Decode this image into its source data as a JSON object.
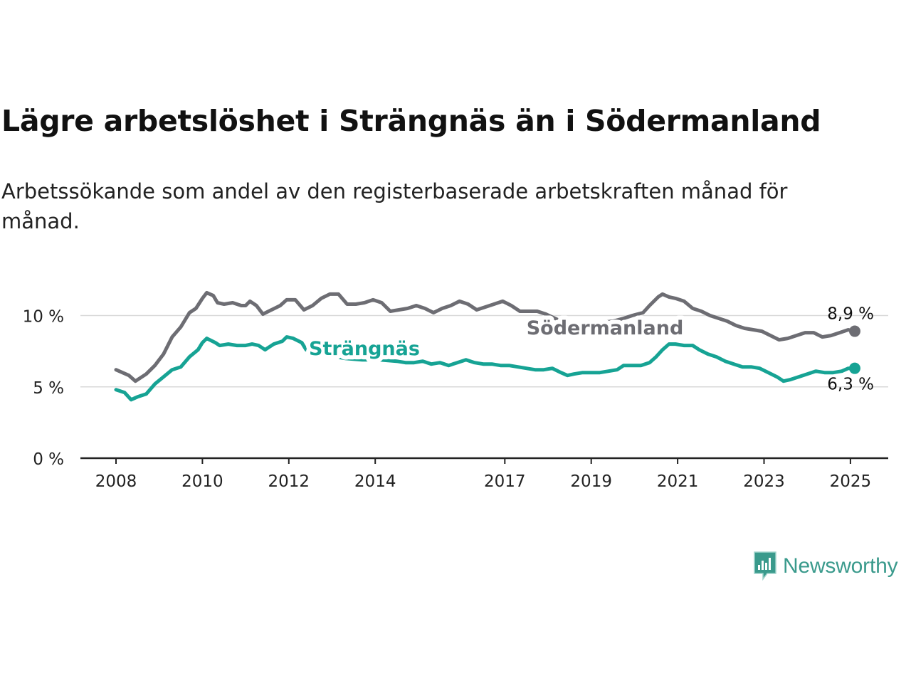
{
  "title": "Lägre arbetslöshet i Strängnäs än i Södermanland",
  "subtitle": "Arbetssökande som andel av den registerbaserade arbetskraften månad för månad.",
  "logo_text": "Newsworthy",
  "colors": {
    "sodermanland": "#6d6d73",
    "strangnas": "#16a394",
    "grid": "#d9d9d9",
    "axis": "#222222"
  },
  "chart_data": {
    "type": "line",
    "y_ticks": [
      {
        "value": 0,
        "label": "0 %"
      },
      {
        "value": 5,
        "label": "5 %"
      },
      {
        "value": 10,
        "label": "10 %"
      }
    ],
    "x_ticks": [
      {
        "value": 2008,
        "label": "2008"
      },
      {
        "value": 2010,
        "label": "2010"
      },
      {
        "value": 2012,
        "label": "2012"
      },
      {
        "value": 2014,
        "label": "2014"
      },
      {
        "value": 2017,
        "label": "2017"
      },
      {
        "value": 2019,
        "label": "2019"
      },
      {
        "value": 2021,
        "label": "2021"
      },
      {
        "value": 2023,
        "label": "2023"
      },
      {
        "value": 2025,
        "label": "2025"
      }
    ],
    "ylim": [
      0,
      12
    ],
    "xlim": [
      2007.25,
      2026
    ],
    "grid": true,
    "series": [
      {
        "name": "Södermanland",
        "color": "#6d6d73",
        "end_label": "8,9 %",
        "points": [
          [
            2008.0,
            6.2
          ],
          [
            2008.3,
            5.8
          ],
          [
            2008.45,
            5.4
          ],
          [
            2008.7,
            5.9
          ],
          [
            2008.9,
            6.5
          ],
          [
            2009.1,
            7.3
          ],
          [
            2009.3,
            8.5
          ],
          [
            2009.5,
            9.2
          ],
          [
            2009.7,
            10.2
          ],
          [
            2009.85,
            10.5
          ],
          [
            2010.0,
            11.2
          ],
          [
            2010.1,
            11.6
          ],
          [
            2010.25,
            11.4
          ],
          [
            2010.35,
            10.9
          ],
          [
            2010.5,
            10.8
          ],
          [
            2010.7,
            10.9
          ],
          [
            2010.9,
            10.7
          ],
          [
            2011.0,
            10.7
          ],
          [
            2011.1,
            11.0
          ],
          [
            2011.25,
            10.7
          ],
          [
            2011.4,
            10.1
          ],
          [
            2011.6,
            10.4
          ],
          [
            2011.8,
            10.7
          ],
          [
            2011.95,
            11.1
          ],
          [
            2012.15,
            11.1
          ],
          [
            2012.35,
            10.4
          ],
          [
            2012.55,
            10.7
          ],
          [
            2012.75,
            11.2
          ],
          [
            2012.95,
            11.5
          ],
          [
            2013.15,
            11.5
          ],
          [
            2013.35,
            10.8
          ],
          [
            2013.55,
            10.8
          ],
          [
            2013.75,
            10.9
          ],
          [
            2013.95,
            11.1
          ],
          [
            2014.15,
            10.9
          ],
          [
            2014.35,
            10.3
          ],
          [
            2014.55,
            10.4
          ],
          [
            2014.75,
            10.5
          ],
          [
            2014.95,
            10.7
          ],
          [
            2015.15,
            10.5
          ],
          [
            2015.35,
            10.2
          ],
          [
            2015.55,
            10.5
          ],
          [
            2015.75,
            10.7
          ],
          [
            2015.95,
            11.0
          ],
          [
            2016.15,
            10.8
          ],
          [
            2016.35,
            10.4
          ],
          [
            2016.55,
            10.6
          ],
          [
            2016.75,
            10.8
          ],
          [
            2016.95,
            11.0
          ],
          [
            2017.15,
            10.7
          ],
          [
            2017.35,
            10.3
          ],
          [
            2017.55,
            10.3
          ],
          [
            2017.75,
            10.3
          ],
          [
            2017.95,
            10.1
          ],
          [
            2018.3,
            9.6
          ],
          [
            2018.6,
            9.4
          ],
          [
            2018.9,
            9.4
          ],
          [
            2019.2,
            9.5
          ],
          [
            2019.5,
            9.6
          ],
          [
            2019.75,
            9.8
          ],
          [
            2019.95,
            10.0
          ],
          [
            2020.2,
            10.2
          ],
          [
            2020.35,
            10.7
          ],
          [
            2020.55,
            11.3
          ],
          [
            2020.65,
            11.5
          ],
          [
            2020.8,
            11.3
          ],
          [
            2020.95,
            11.2
          ],
          [
            2021.15,
            11.0
          ],
          [
            2021.35,
            10.5
          ],
          [
            2021.55,
            10.3
          ],
          [
            2021.75,
            10.0
          ],
          [
            2021.95,
            9.8
          ],
          [
            2022.15,
            9.6
          ],
          [
            2022.35,
            9.3
          ],
          [
            2022.55,
            9.1
          ],
          [
            2022.75,
            9.0
          ],
          [
            2022.95,
            8.9
          ],
          [
            2023.15,
            8.6
          ],
          [
            2023.35,
            8.3
          ],
          [
            2023.55,
            8.4
          ],
          [
            2023.75,
            8.6
          ],
          [
            2023.95,
            8.8
          ],
          [
            2024.15,
            8.8
          ],
          [
            2024.35,
            8.5
          ],
          [
            2024.55,
            8.6
          ],
          [
            2024.75,
            8.8
          ],
          [
            2024.95,
            9.0
          ],
          [
            2025.1,
            8.9
          ]
        ]
      },
      {
        "name": "Strängnäs",
        "color": "#16a394",
        "end_label": "6,3 %",
        "points": [
          [
            2008.0,
            4.8
          ],
          [
            2008.2,
            4.6
          ],
          [
            2008.35,
            4.1
          ],
          [
            2008.5,
            4.3
          ],
          [
            2008.7,
            4.5
          ],
          [
            2008.9,
            5.2
          ],
          [
            2009.1,
            5.7
          ],
          [
            2009.3,
            6.2
          ],
          [
            2009.5,
            6.4
          ],
          [
            2009.7,
            7.1
          ],
          [
            2009.9,
            7.6
          ],
          [
            2010.0,
            8.1
          ],
          [
            2010.1,
            8.4
          ],
          [
            2010.3,
            8.1
          ],
          [
            2010.4,
            7.9
          ],
          [
            2010.6,
            8.0
          ],
          [
            2010.8,
            7.9
          ],
          [
            2011.0,
            7.9
          ],
          [
            2011.15,
            8.0
          ],
          [
            2011.3,
            7.9
          ],
          [
            2011.45,
            7.6
          ],
          [
            2011.65,
            8.0
          ],
          [
            2011.85,
            8.2
          ],
          [
            2011.95,
            8.5
          ],
          [
            2012.1,
            8.4
          ],
          [
            2012.3,
            8.1
          ],
          [
            2012.4,
            7.6
          ],
          [
            2012.6,
            7.4
          ],
          [
            2012.9,
            7.2
          ],
          [
            2013.3,
            7.0
          ],
          [
            2013.7,
            6.9
          ],
          [
            2014.1,
            6.9
          ],
          [
            2014.5,
            6.8
          ],
          [
            2014.7,
            6.7
          ],
          [
            2014.9,
            6.7
          ],
          [
            2015.1,
            6.8
          ],
          [
            2015.3,
            6.6
          ],
          [
            2015.5,
            6.7
          ],
          [
            2015.7,
            6.5
          ],
          [
            2015.9,
            6.7
          ],
          [
            2016.1,
            6.9
          ],
          [
            2016.3,
            6.7
          ],
          [
            2016.5,
            6.6
          ],
          [
            2016.7,
            6.6
          ],
          [
            2016.9,
            6.5
          ],
          [
            2017.1,
            6.5
          ],
          [
            2017.3,
            6.4
          ],
          [
            2017.5,
            6.3
          ],
          [
            2017.7,
            6.2
          ],
          [
            2017.9,
            6.2
          ],
          [
            2018.1,
            6.3
          ],
          [
            2018.3,
            6.0
          ],
          [
            2018.45,
            5.8
          ],
          [
            2018.6,
            5.9
          ],
          [
            2018.8,
            6.0
          ],
          [
            2019.0,
            6.0
          ],
          [
            2019.2,
            6.0
          ],
          [
            2019.4,
            6.1
          ],
          [
            2019.6,
            6.2
          ],
          [
            2019.75,
            6.5
          ],
          [
            2019.95,
            6.5
          ],
          [
            2020.15,
            6.5
          ],
          [
            2020.35,
            6.7
          ],
          [
            2020.5,
            7.1
          ],
          [
            2020.65,
            7.6
          ],
          [
            2020.8,
            8.0
          ],
          [
            2020.95,
            8.0
          ],
          [
            2021.15,
            7.9
          ],
          [
            2021.35,
            7.9
          ],
          [
            2021.5,
            7.6
          ],
          [
            2021.7,
            7.3
          ],
          [
            2021.9,
            7.1
          ],
          [
            2022.1,
            6.8
          ],
          [
            2022.3,
            6.6
          ],
          [
            2022.5,
            6.4
          ],
          [
            2022.7,
            6.4
          ],
          [
            2022.9,
            6.3
          ],
          [
            2023.1,
            6.0
          ],
          [
            2023.3,
            5.7
          ],
          [
            2023.45,
            5.4
          ],
          [
            2023.6,
            5.5
          ],
          [
            2023.8,
            5.7
          ],
          [
            2024.0,
            5.9
          ],
          [
            2024.2,
            6.1
          ],
          [
            2024.4,
            6.0
          ],
          [
            2024.6,
            6.0
          ],
          [
            2024.8,
            6.1
          ],
          [
            2024.95,
            6.3
          ],
          [
            2025.1,
            6.3
          ]
        ]
      }
    ]
  }
}
